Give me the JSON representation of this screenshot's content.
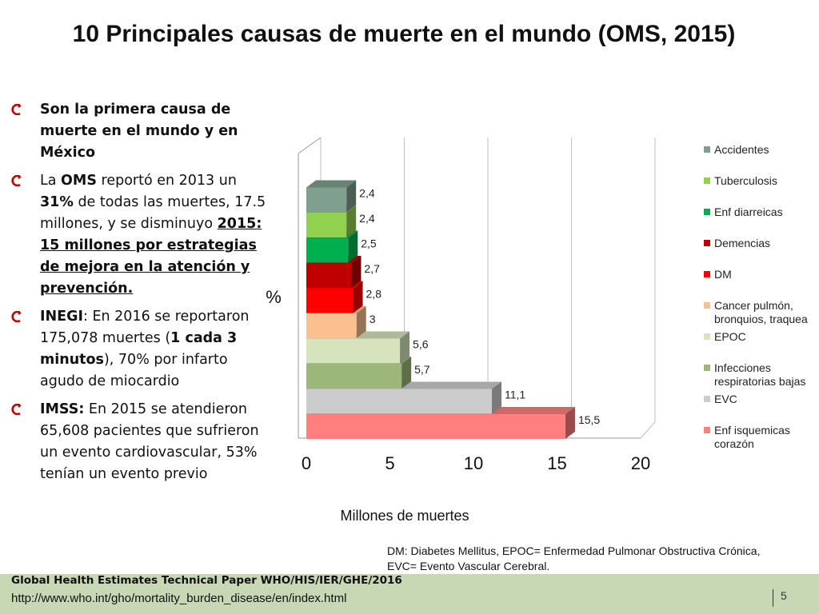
{
  "slide": {
    "title": "10 Principales causas de muerte en el mundo (OMS, 2015)"
  },
  "bullets": {
    "b1": {
      "text": "Son la primera causa de muerte en el mundo y en México"
    },
    "b2": {
      "p1": "La ",
      "p2": "OMS",
      "p3": " reportó en 2013 un ",
      "p4": "31%",
      "p5": " de todas las muertes, 17.5 millones, y se disminuyo ",
      "p6": "2015: 15 millones por estrategias de mejora en la atención y prevención."
    },
    "b3": {
      "p1": "INEGI",
      "p2": ": En 2016 se reportaron 175,078 muertes (",
      "p3": "1 cada 3 minutos",
      "p4": "), 70% por infarto agudo de miocardio"
    },
    "b4": {
      "p1": "IMSS:",
      "p2": " En 2015 se atendieron 65,608 pacientes que sufrieron un evento cardiovascular, 53% tenían un evento previo"
    }
  },
  "chart_data": {
    "type": "bar",
    "orientation": "horizontal",
    "categories": [
      "Enf isquemicas corazón",
      "EVC",
      "Infecciones respiratorias bajas",
      "EPOC",
      "Cancer pulmón, bronquios, traquea",
      "DM",
      "Demencias",
      "Enf diarreicas",
      "Tuberculosis",
      "Accidentes"
    ],
    "values": [
      15.5,
      11.1,
      5.7,
      5.6,
      3,
      2.8,
      2.7,
      2.5,
      2.4,
      2.4
    ],
    "value_labels": [
      "15,5",
      "11,1",
      "5,7",
      "5,6",
      "3",
      "2,8",
      "2,7",
      "2,5",
      "2,4",
      "2,4"
    ],
    "colors": [
      "#ff7f7f",
      "#cccccc",
      "#9cb779",
      "#d6e3bc",
      "#fac090",
      "#ff0000",
      "#c00000",
      "#00b050",
      "#92d050",
      "#7f9f8f"
    ],
    "legend_order": [
      "Accidentes",
      "Tuberculosis",
      "Enf diarreicas",
      "Demencias",
      "DM",
      "Cancer pulmón,|bronquios, traquea",
      "EPOC",
      "Infecciones|respiratorias bajas",
      "EVC",
      "Enf isquemicas|corazón"
    ],
    "legend_colors": [
      "#7f9f8f",
      "#92d050",
      "#00b050",
      "#c00000",
      "#ff0000",
      "#fac090",
      "#d6e3bc",
      "#9cb779",
      "#cccccc",
      "#ff7f7f"
    ],
    "xlim": [
      0,
      20
    ],
    "xticks": [
      "0",
      "5",
      "10",
      "15",
      "20"
    ],
    "xlabel": "Millones de muertes",
    "ylabel": "%",
    "grid": true,
    "legend_position": "right"
  },
  "footnote": {
    "line1": "DM: Diabetes Mellitus, EPOC= Enfermedad Pulmonar Obstructiva Crónica,",
    "line2": "EVC= Evento Vascular Cerebral."
  },
  "footer": {
    "reference": "Global Health Estimates Technical Paper WHO/HIS/IER/GHE/2016",
    "url": "http://www.who.int/gho/mortality_burden_disease/en/index.html",
    "page_number": "5"
  }
}
